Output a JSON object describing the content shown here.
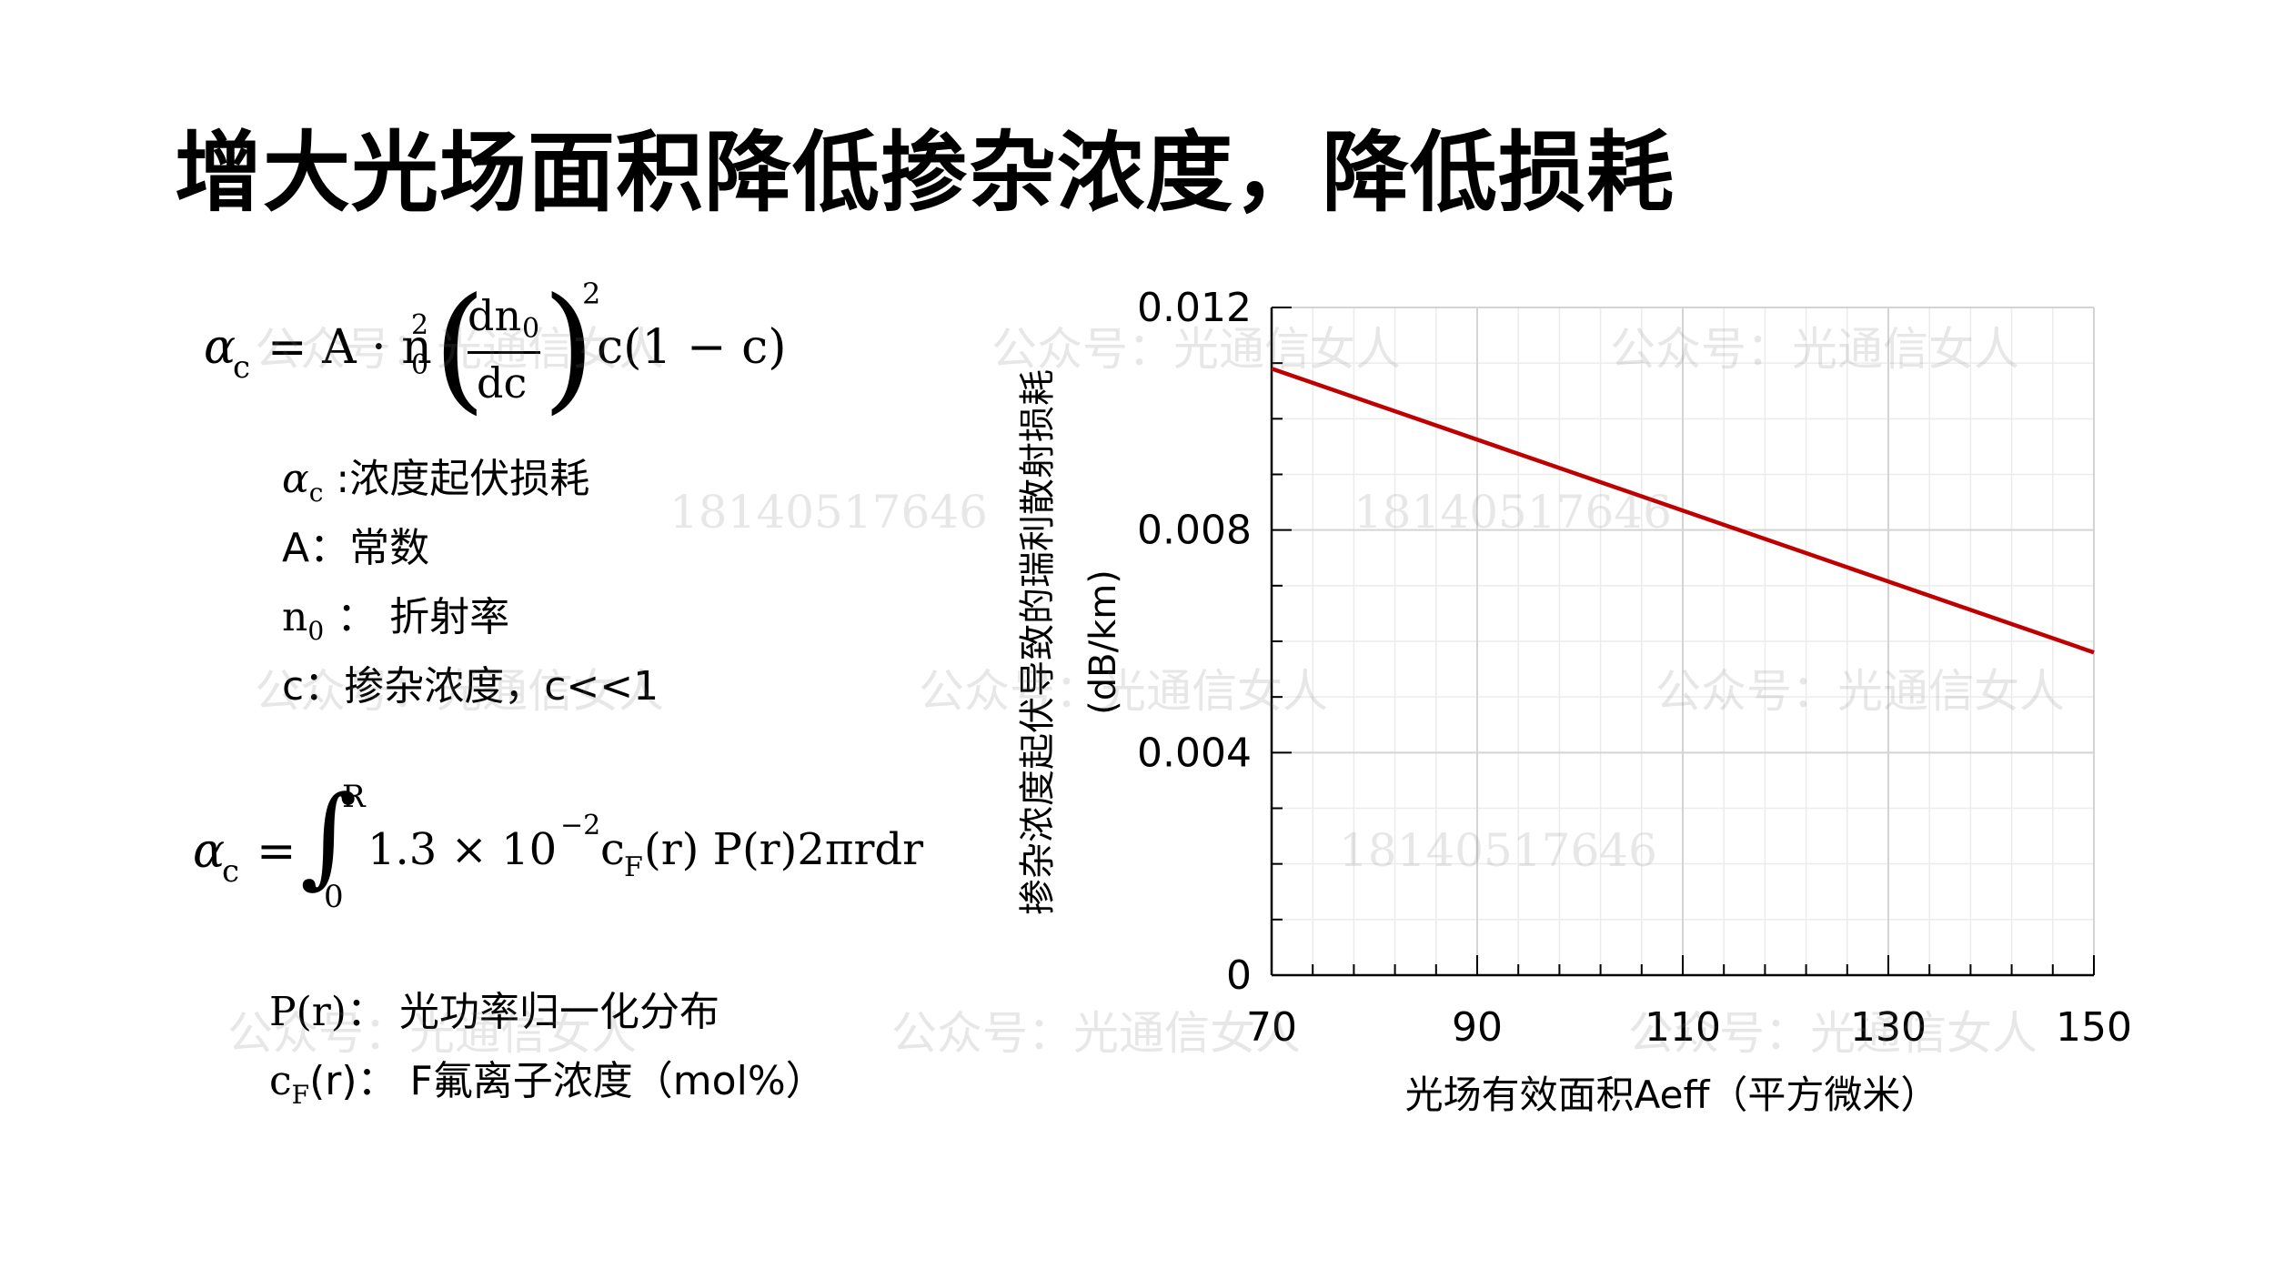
{
  "page": {
    "title": "增大光场面积降低掺杂浓度，降低损耗"
  },
  "formulas": {
    "eq1_alpha": "α",
    "eq1_alpha_sub": "c",
    "eq1_eq": "= A · n",
    "eq1_n_sub": "0",
    "eq1_n_sup": "2",
    "eq1_num": "dn",
    "eq1_num_sub": "0",
    "eq1_den": "dc",
    "eq1_sup": "2",
    "eq1_tail": "c(1 − c)",
    "eq2_alpha": "α",
    "eq2_alpha_sub": "c",
    "eq2_eq": "=",
    "eq2_int_upper": "R",
    "eq2_int_lower": "0",
    "eq2_body_a": "1.3 × 10",
    "eq2_body_exp": "−2",
    "eq2_body_c": "c",
    "eq2_body_c_sub": "F",
    "eq2_body_b": "(r) P(r)2πrdr"
  },
  "definitions": [
    {
      "sym": "α",
      "sub": "c",
      "text": " :浓度起伏损耗"
    },
    {
      "sym": "A",
      "sub": "",
      "text": "：常数"
    },
    {
      "sym": "n",
      "sub": "0",
      "text": " ： 折射率"
    },
    {
      "sym": "c",
      "sub": "",
      "text": "：掺杂浓度，c<<1"
    },
    {
      "sym": "P(r)",
      "sub": "",
      "text": "： 光功率归一化分布"
    },
    {
      "sym": "c",
      "sub": "F",
      "text": "(r)： F氟离子浓度（mol%）"
    }
  ],
  "watermarks": [
    "公众号：光通信女人",
    "18140517646"
  ],
  "chart_data": {
    "type": "line",
    "xlabel": "光场有效面积Aeff（平方微米）",
    "ylabel_line1": "掺杂浓度起伏导致的瑞利散射损耗",
    "ylabel_line2": "(dB/km)",
    "xlim": [
      70,
      150
    ],
    "ylim": [
      0,
      0.012
    ],
    "x_ticks": [
      "70",
      "90",
      "110",
      "130",
      "150"
    ],
    "y_ticks": [
      "0",
      "0.004",
      "0.008",
      "0.012"
    ],
    "grid": true,
    "series": [
      {
        "color": "#c00000",
        "x": [
          70,
          150
        ],
        "y": [
          0.0109,
          0.0058
        ]
      }
    ]
  }
}
